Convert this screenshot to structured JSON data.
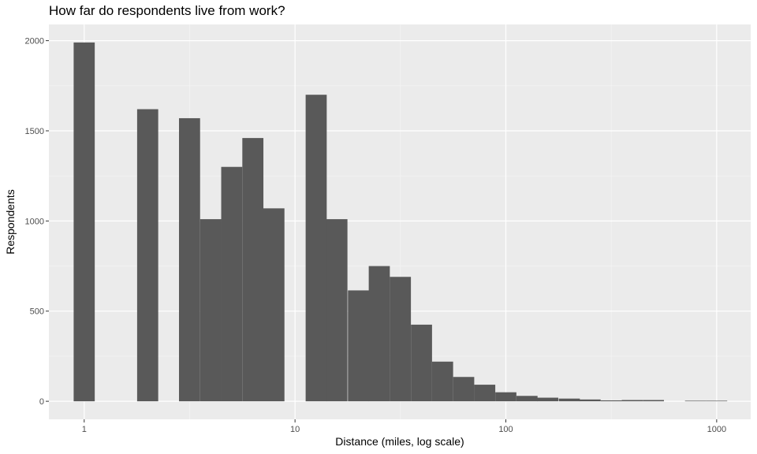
{
  "chart_data": {
    "type": "bar",
    "title": "How far do respondents live from work?",
    "xlabel": "Distance (miles, log scale)",
    "ylabel": "Respondents",
    "x_scale": "log10",
    "xlim": [
      0.68,
      1450
    ],
    "ylim": [
      -100,
      2090
    ],
    "x_ticks": [
      1,
      10,
      100,
      1000
    ],
    "x_tick_labels": [
      "1",
      "10",
      "100",
      "1000"
    ],
    "y_ticks": [
      0,
      500,
      1000,
      1500,
      2000
    ],
    "y_tick_labels": [
      "0",
      "500",
      "1000",
      "1500",
      "2000"
    ],
    "bar_color": "#595959",
    "panel_background": "#ebebeb",
    "grid": true,
    "bin_width_log10": 0.1,
    "bins": [
      {
        "center": 1.0,
        "count": 1990
      },
      {
        "center": 1.26,
        "count": 0
      },
      {
        "center": 1.58,
        "count": 0
      },
      {
        "center": 2.0,
        "count": 1620
      },
      {
        "center": 2.51,
        "count": 0
      },
      {
        "center": 3.16,
        "count": 1570
      },
      {
        "center": 3.98,
        "count": 1010
      },
      {
        "center": 5.01,
        "count": 1300
      },
      {
        "center": 6.31,
        "count": 1460
      },
      {
        "center": 7.94,
        "count": 1070
      },
      {
        "center": 10.0,
        "count": 0
      },
      {
        "center": 12.6,
        "count": 1700
      },
      {
        "center": 15.8,
        "count": 1010
      },
      {
        "center": 20.0,
        "count": 615
      },
      {
        "center": 25.1,
        "count": 750
      },
      {
        "center": 31.6,
        "count": 690
      },
      {
        "center": 39.8,
        "count": 425
      },
      {
        "center": 50.1,
        "count": 220
      },
      {
        "center": 63.1,
        "count": 135
      },
      {
        "center": 79.4,
        "count": 92
      },
      {
        "center": 100.0,
        "count": 50
      },
      {
        "center": 126,
        "count": 30
      },
      {
        "center": 158,
        "count": 20
      },
      {
        "center": 200,
        "count": 15
      },
      {
        "center": 251,
        "count": 10
      },
      {
        "center": 316,
        "count": 5
      },
      {
        "center": 398,
        "count": 7
      },
      {
        "center": 501,
        "count": 7
      },
      {
        "center": 631,
        "count": 0
      },
      {
        "center": 794,
        "count": 3
      },
      {
        "center": 1000,
        "count": 3
      }
    ]
  }
}
